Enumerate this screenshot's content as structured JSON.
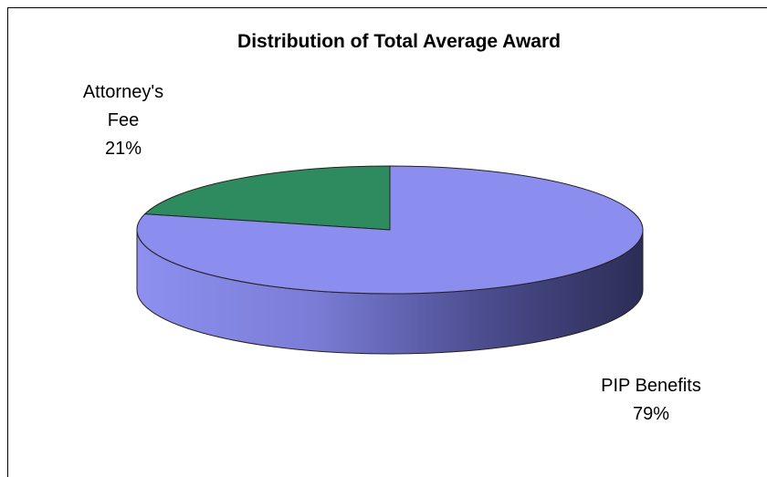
{
  "chart_data": {
    "type": "pie",
    "title": "Distribution of Total Average Award",
    "categories": [
      "Attorney's Fee",
      "PIP Benefits"
    ],
    "values": [
      21,
      79
    ],
    "value_labels": [
      "21%",
      "79%"
    ],
    "colors": [
      "#2e8b5f",
      "#8b8def"
    ]
  }
}
